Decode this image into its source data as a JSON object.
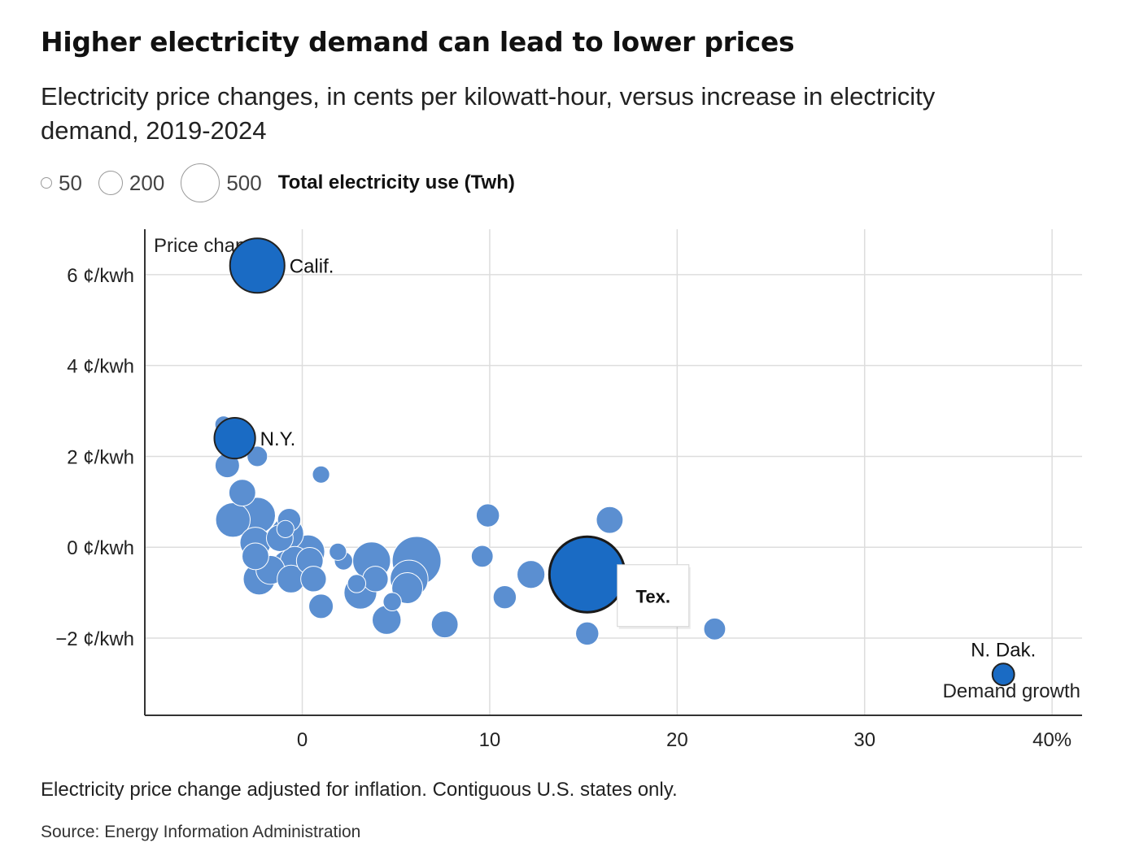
{
  "title": "Higher electricity demand can lead to lower prices",
  "subtitle": "Electricity price changes, in cents per kilowatt-hour, versus increase in electricity demand, 2019-2024",
  "legend": {
    "sizes": [
      {
        "label": "50",
        "value": 50
      },
      {
        "label": "200",
        "value": 200
      },
      {
        "label": "500",
        "value": 500
      }
    ],
    "title": "Total electricity use (Twh)"
  },
  "note": "Electricity price change adjusted for inflation. Contiguous U.S. states only.",
  "source": "Source: Energy Information Administration",
  "colors": {
    "point": "#5b8fd1",
    "highlight": "#1a6bc4",
    "grid": "#dddddd",
    "axis": "#333333"
  },
  "chart_data": {
    "type": "scatter",
    "xlabel": "Demand growth",
    "ylabel": "Price change",
    "xlim": [
      -8.4,
      41.6
    ],
    "ylim": [
      -3.7,
      7.0
    ],
    "x_ticks": [
      {
        "value": 0,
        "label": "0"
      },
      {
        "value": 10,
        "label": "10"
      },
      {
        "value": 20,
        "label": "20"
      },
      {
        "value": 30,
        "label": "30"
      },
      {
        "value": 40,
        "label": "40%"
      }
    ],
    "y_ticks": [
      {
        "value": 6,
        "label": "6 ¢/kwh"
      },
      {
        "value": 4,
        "label": "4 ¢/kwh"
      },
      {
        "value": 2,
        "label": "2 ¢/kwh"
      },
      {
        "value": 0,
        "label": "0 ¢/kwh"
      },
      {
        "value": -2,
        "label": "−2 ¢/kwh"
      }
    ],
    "grid": true,
    "size_encoding": "Total electricity use (Twh)",
    "points": [
      {
        "x": -2.4,
        "y": 6.2,
        "size": 250,
        "label": "Calif.",
        "highlight": true
      },
      {
        "x": -3.6,
        "y": 2.4,
        "size": 140,
        "label": "N.Y.",
        "highlight": true
      },
      {
        "x": 15.2,
        "y": -0.6,
        "size": 480,
        "label": "Tex.",
        "highlight": true
      },
      {
        "x": 37.4,
        "y": -2.8,
        "size": 40,
        "label": "N. Dak.",
        "highlight": true
      },
      {
        "x": -4.2,
        "y": 2.7,
        "size": 25
      },
      {
        "x": -2.4,
        "y": 2.0,
        "size": 35
      },
      {
        "x": -4.0,
        "y": 1.8,
        "size": 50
      },
      {
        "x": 1.0,
        "y": 1.6,
        "size": 25
      },
      {
        "x": -3.2,
        "y": 1.2,
        "size": 60
      },
      {
        "x": -3.7,
        "y": 0.6,
        "size": 100
      },
      {
        "x": -2.4,
        "y": 0.7,
        "size": 110
      },
      {
        "x": -0.7,
        "y": 0.6,
        "size": 45
      },
      {
        "x": -0.9,
        "y": 0.4,
        "size": 25
      },
      {
        "x": -1.2,
        "y": 0.2,
        "size": 60
      },
      {
        "x": -0.8,
        "y": 0.3,
        "size": 90
      },
      {
        "x": -2.5,
        "y": 0.1,
        "size": 80
      },
      {
        "x": -2.5,
        "y": -0.2,
        "size": 60
      },
      {
        "x": 0.3,
        "y": -0.1,
        "size": 95
      },
      {
        "x": 0.4,
        "y": -0.3,
        "size": 60
      },
      {
        "x": -0.4,
        "y": -0.3,
        "size": 70
      },
      {
        "x": -0.8,
        "y": -0.4,
        "size": 75
      },
      {
        "x": -1.7,
        "y": -0.5,
        "size": 70
      },
      {
        "x": -2.3,
        "y": -0.7,
        "size": 85
      },
      {
        "x": -0.6,
        "y": -0.7,
        "size": 65
      },
      {
        "x": 0.6,
        "y": -0.7,
        "size": 55
      },
      {
        "x": 1.9,
        "y": -0.1,
        "size": 25
      },
      {
        "x": 2.2,
        "y": -0.3,
        "size": 28
      },
      {
        "x": 1.0,
        "y": -1.3,
        "size": 50
      },
      {
        "x": 3.7,
        "y": -0.3,
        "size": 120
      },
      {
        "x": 3.9,
        "y": -0.7,
        "size": 55
      },
      {
        "x": 2.9,
        "y": -0.8,
        "size": 28
      },
      {
        "x": 3.1,
        "y": -1.0,
        "size": 90
      },
      {
        "x": 4.8,
        "y": -1.2,
        "size": 28
      },
      {
        "x": 4.5,
        "y": -1.6,
        "size": 70
      },
      {
        "x": 6.1,
        "y": -0.3,
        "size": 200
      },
      {
        "x": 5.7,
        "y": -0.7,
        "size": 120
      },
      {
        "x": 5.6,
        "y": -0.9,
        "size": 80
      },
      {
        "x": 7.6,
        "y": -1.7,
        "size": 60
      },
      {
        "x": 9.6,
        "y": -0.2,
        "size": 40
      },
      {
        "x": 9.9,
        "y": 0.7,
        "size": 45
      },
      {
        "x": 10.8,
        "y": -1.1,
        "size": 45
      },
      {
        "x": 12.2,
        "y": -0.6,
        "size": 65
      },
      {
        "x": 14.5,
        "y": -1.0,
        "size": 100
      },
      {
        "x": 15.9,
        "y": -0.2,
        "size": 70
      },
      {
        "x": 16.4,
        "y": 0.6,
        "size": 60
      },
      {
        "x": 15.2,
        "y": -1.9,
        "size": 45
      },
      {
        "x": 22.0,
        "y": -1.8,
        "size": 40
      }
    ]
  }
}
